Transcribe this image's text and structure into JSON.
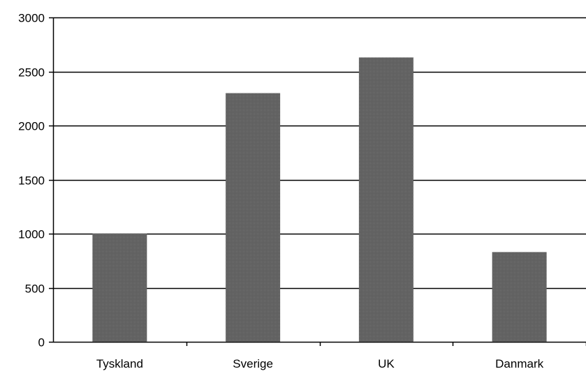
{
  "chart_data": {
    "type": "bar",
    "title": "",
    "xlabel": "",
    "ylabel": "",
    "categories": [
      "Tyskland",
      "Sverige",
      "UK",
      "Danmark"
    ],
    "values": [
      1000,
      2300,
      2630,
      830
    ],
    "ylim": [
      0,
      3000
    ],
    "yticks": [
      0,
      500,
      1000,
      1500,
      2000,
      2500,
      3000
    ],
    "ytick_labels": [
      "0",
      "500",
      "1000",
      "1500",
      "2000",
      "2500",
      "3000"
    ],
    "grid": true,
    "legend": "none",
    "bar_color": "#555555",
    "grid_color": "#000000"
  }
}
